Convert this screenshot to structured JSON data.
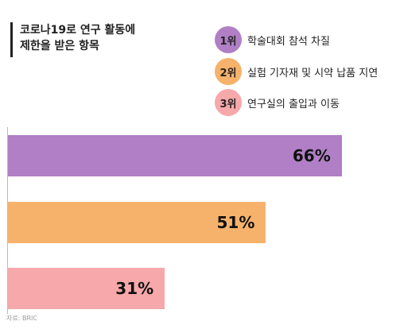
{
  "header": {
    "title_line1": "코로나19로 연구 활동에",
    "title_line2": "제한을 받은 항목"
  },
  "legend": [
    {
      "rank": "1위",
      "label": "학술대회 참석 차질",
      "color": "#b07fc5"
    },
    {
      "rank": "2위",
      "label": "실험 기자재 및 시약 납품 지연",
      "color": "#f6b26b"
    },
    {
      "rank": "3위",
      "label": "연구실의 출입과 이동",
      "color": "#f7a8aa"
    }
  ],
  "chart_data": {
    "type": "bar",
    "orientation": "horizontal",
    "categories": [
      "1위",
      "2위",
      "3위"
    ],
    "values": [
      66,
      51,
      31
    ],
    "data_labels": [
      "66%",
      "51%",
      "31%"
    ],
    "colors": [
      "#b07fc5",
      "#f6b26b",
      "#f7a8aa"
    ],
    "xlim": [
      0,
      100
    ],
    "grid": false,
    "legend_position": "top-right"
  },
  "footer": {
    "source": "자료: BRIC"
  }
}
